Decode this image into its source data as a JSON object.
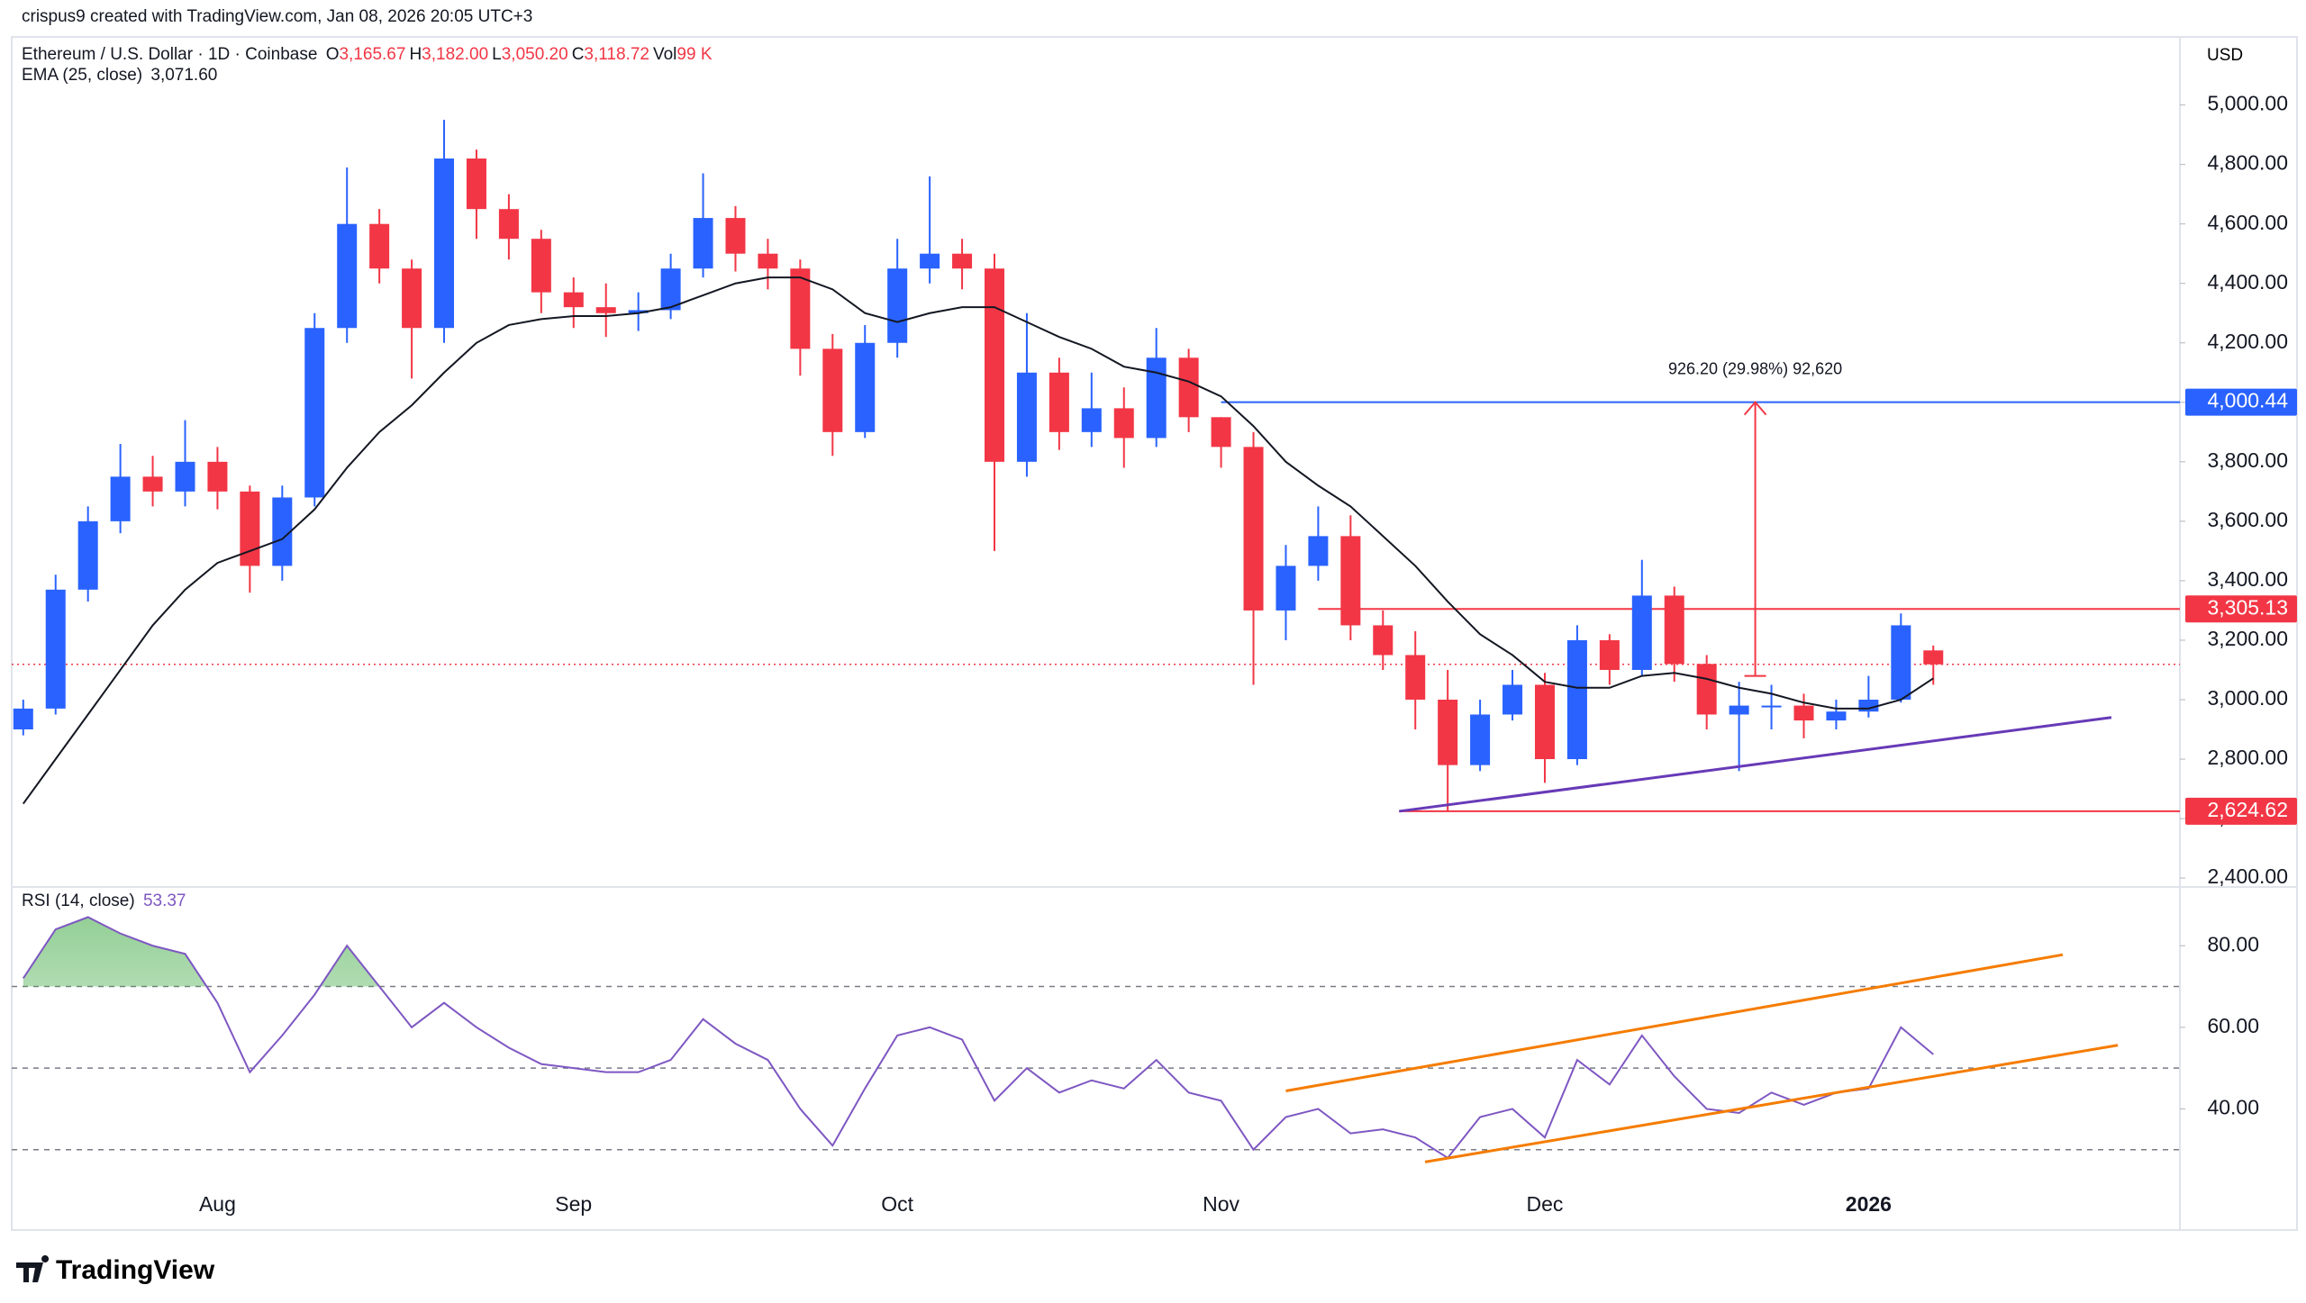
{
  "header": {
    "byline": "crispus9 created with TradingView.com, Jan 08, 2026 20:05 UTC+3",
    "currency": "USD",
    "brand": "TradingView"
  },
  "chart_data": [
    {
      "type": "candlestick",
      "symbol": "Ethereum / U.S. Dollar · 1D · Coinbase",
      "legend_items": [
        {
          "key": "O",
          "value": "3,165.67"
        },
        {
          "key": "H",
          "value": "3,182.00"
        },
        {
          "key": "L",
          "value": "3,050.20"
        },
        {
          "key": "C",
          "value": "3,118.72"
        },
        {
          "key": "Vol",
          "value": "99 K"
        }
      ],
      "categories": [
        null,
        null,
        null,
        null,
        null,
        null,
        "Aug",
        null,
        null,
        null,
        null,
        null,
        null,
        null,
        null,
        null,
        null,
        "Sep",
        null,
        null,
        null,
        null,
        null,
        null,
        null,
        null,
        null,
        "Oct",
        null,
        null,
        null,
        null,
        null,
        null,
        null,
        null,
        null,
        "Nov",
        null,
        null,
        null,
        null,
        null,
        null,
        null,
        null,
        null,
        "Dec",
        null,
        null,
        null,
        null,
        null,
        null,
        null,
        null,
        null,
        "2026",
        null,
        null
      ],
      "open": [
        2900,
        2970,
        3370,
        3600,
        3750,
        3700,
        3800,
        3700,
        3450,
        3680,
        4250,
        4600,
        4450,
        4250,
        4820,
        4650,
        4550,
        4370,
        4320,
        4300,
        4310,
        4450,
        4620,
        4500,
        4450,
        4180,
        3900,
        4200,
        4450,
        4500,
        4450,
        3800,
        4100,
        3900,
        3980,
        3880,
        4150,
        3950,
        3850,
        3300,
        3450,
        3550,
        3250,
        3150,
        3000,
        2780,
        2950,
        3050,
        2800,
        3200,
        3100,
        3350,
        3120,
        2950,
        2980,
        2980,
        2930,
        2960,
        3000,
        3165.67
      ],
      "high": [
        3000,
        3420,
        3650,
        3860,
        3820,
        3940,
        3850,
        3720,
        3720,
        4300,
        4790,
        4650,
        4480,
        4950,
        4850,
        4700,
        4580,
        4420,
        4400,
        4370,
        4500,
        4770,
        4660,
        4550,
        4480,
        4230,
        4260,
        4550,
        4760,
        4550,
        4500,
        4300,
        4150,
        4100,
        4050,
        4250,
        4180,
        3950,
        3900,
        3520,
        3650,
        3620,
        3300,
        3230,
        3100,
        3000,
        3100,
        3090,
        3250,
        3220,
        3470,
        3380,
        3150,
        3060,
        3050,
        3020,
        3000,
        3080,
        3290,
        3182
      ],
      "low": [
        2880,
        2950,
        3330,
        3560,
        3650,
        3650,
        3640,
        3360,
        3400,
        3650,
        4200,
        4400,
        4080,
        4200,
        4550,
        4480,
        4300,
        4250,
        4220,
        4240,
        4280,
        4420,
        4440,
        4380,
        4090,
        3820,
        3880,
        4150,
        4400,
        4380,
        3500,
        3750,
        3840,
        3850,
        3780,
        3850,
        3900,
        3780,
        3050,
        3200,
        3400,
        3200,
        3100,
        2900,
        2624.62,
        2760,
        2930,
        2720,
        2780,
        3050,
        3080,
        3060,
        2900,
        2760,
        2900,
        2870,
        2900,
        2940,
        2990,
        3050.2
      ],
      "close": [
        2970,
        3370,
        3600,
        3750,
        3700,
        3800,
        3700,
        3450,
        3680,
        4250,
        4600,
        4450,
        4250,
        4820,
        4650,
        4550,
        4370,
        4320,
        4300,
        4310,
        4450,
        4620,
        4500,
        4450,
        4180,
        3900,
        4200,
        4450,
        4500,
        4450,
        3800,
        4100,
        3900,
        3980,
        3880,
        4150,
        3950,
        3850,
        3300,
        3450,
        3550,
        3250,
        3150,
        3000,
        2780,
        2950,
        3050,
        2800,
        3200,
        3100,
        3350,
        3120,
        2950,
        2980,
        2980,
        2930,
        2960,
        3000,
        3250,
        3118.72
      ],
      "up_color": "#2962ff",
      "down_color": "#f23645",
      "ema": {
        "name": "EMA (25, close)",
        "value_label": "3,071.60",
        "color": "#131722",
        "values": [
          2650,
          2800,
          2950,
          3100,
          3250,
          3370,
          3460,
          3500,
          3540,
          3640,
          3780,
          3900,
          3990,
          4100,
          4200,
          4260,
          4280,
          4290,
          4290,
          4300,
          4320,
          4360,
          4400,
          4420,
          4420,
          4380,
          4300,
          4270,
          4300,
          4320,
          4320,
          4270,
          4220,
          4180,
          4120,
          4100,
          4070,
          4020,
          3920,
          3800,
          3720,
          3650,
          3550,
          3450,
          3330,
          3220,
          3150,
          3060,
          3040,
          3040,
          3080,
          3090,
          3070,
          3040,
          3020,
          2990,
          2970,
          2970,
          3000,
          3071.6
        ]
      },
      "ylim": [
        2370,
        5229
      ],
      "yticks": [
        {
          "value": 2400,
          "label": "2,400.00"
        },
        {
          "value": 2600,
          "label": "2,600.00"
        },
        {
          "value": 2800,
          "label": "2,800.00"
        },
        {
          "value": 3000,
          "label": "3,000.00"
        },
        {
          "value": 3200,
          "label": "3,200.00"
        },
        {
          "value": 3400,
          "label": "3,400.00"
        },
        {
          "value": 3600,
          "label": "3,600.00"
        },
        {
          "value": 3800,
          "label": "3,800.00"
        },
        {
          "value": 4000,
          "label": "4,000.00"
        },
        {
          "value": 4200,
          "label": "4,200.00"
        },
        {
          "value": 4400,
          "label": "4,400.00"
        },
        {
          "value": 4600,
          "label": "4,600.00"
        },
        {
          "value": 4800,
          "label": "4,800.00"
        },
        {
          "value": 5000,
          "label": "5,000.00"
        }
      ],
      "price_lines": [
        {
          "value": 4000.44,
          "label": "4,000.44",
          "color": "#2962ff",
          "from": 37
        },
        {
          "value": 3305.13,
          "label": "3,305.13",
          "color": "#f23645",
          "from": 40
        },
        {
          "value": 2624.62,
          "label": "2,624.62",
          "color": "#f23645",
          "from": 42.5
        }
      ],
      "last_price_color": "#f23645",
      "trendlines": [
        {
          "start": [
            42.5,
            2624.62
          ],
          "end": [
            64.5,
            2940
          ],
          "color": "#673ab7"
        }
      ],
      "measure": {
        "text": "926.20 (29.98%) 92,620",
        "from": 3080,
        "to": 4000.44,
        "x": 53.5,
        "color": "#f23645"
      },
      "grid": false
    },
    {
      "type": "line",
      "name": "RSI (14, close)",
      "value_label": "53.37",
      "color": "#7e57c2",
      "values": [
        72,
        84,
        87,
        83,
        80,
        78,
        66,
        49,
        58,
        68,
        80,
        70,
        60,
        66,
        60,
        55,
        51,
        50,
        49,
        49,
        52,
        62,
        56,
        52,
        40,
        31,
        45,
        58,
        60,
        57,
        42,
        50,
        44,
        47,
        45,
        52,
        44,
        42,
        30,
        38,
        40,
        34,
        35,
        33,
        28,
        38,
        40,
        33,
        52,
        46,
        58,
        48,
        40,
        39,
        44,
        41,
        44,
        45,
        60,
        53.37
      ],
      "ylim": [
        10.3,
        94.4
      ],
      "yticks": [
        {
          "value": 40,
          "label": "40.00"
        },
        {
          "value": 60,
          "label": "60.00"
        },
        {
          "value": 80,
          "label": "80.00"
        }
      ],
      "levels": [
        70,
        50,
        30
      ],
      "overbought_fill": "#4caf50",
      "trendlines": [
        {
          "start": [
            39,
            44.4
          ],
          "end": [
            63,
            77.8
          ],
          "color": "#f57c00"
        },
        {
          "start": [
            43.3,
            27
          ],
          "end": [
            64.7,
            55.6
          ],
          "color": "#f57c00"
        }
      ]
    }
  ]
}
